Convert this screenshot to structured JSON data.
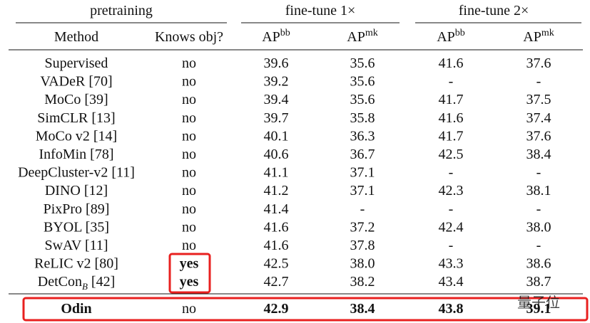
{
  "header": {
    "groups": [
      "pretraining",
      "fine-tune 1×",
      "fine-tune 2×"
    ],
    "columns": [
      "Method",
      "Knows obj?",
      {
        "base": "AP",
        "sup": "bb"
      },
      {
        "base": "AP",
        "sup": "mk"
      },
      {
        "base": "AP",
        "sup": "bb"
      },
      {
        "base": "AP",
        "sup": "mk"
      }
    ]
  },
  "table": {
    "rows": [
      [
        "Supervised",
        "no",
        "39.6",
        "35.6",
        "41.6",
        "37.6"
      ],
      [
        "VADeR [70]",
        "no",
        "39.2",
        "35.6",
        "-",
        "-"
      ],
      [
        "MoCo [39]",
        "no",
        "39.4",
        "35.6",
        "41.7",
        "37.5"
      ],
      [
        "SimCLR [13]",
        "no",
        "39.7",
        "35.8",
        "41.6",
        "37.4"
      ],
      [
        "MoCo v2 [14]",
        "no",
        "40.1",
        "36.3",
        "41.7",
        "37.6"
      ],
      [
        "InfoMin [78]",
        "no",
        "40.6",
        "36.7",
        "42.5",
        "38.4"
      ],
      [
        "DeepCluster-v2 [11]",
        "no",
        "41.1",
        "37.1",
        "-",
        "-"
      ],
      [
        "DINO [12]",
        "no",
        "41.2",
        "37.1",
        "42.3",
        "38.1"
      ],
      [
        "PixPro [89]",
        "no",
        "41.4",
        "-",
        "-",
        "-"
      ],
      [
        "BYOL [35]",
        "no",
        "41.6",
        "37.2",
        "42.4",
        "38.0"
      ],
      [
        "SwAV [11]",
        "no",
        "41.6",
        "37.8",
        "-",
        "-"
      ],
      [
        "ReLIC v2 [80]",
        "yes",
        "42.5",
        "38.0",
        "43.3",
        "38.6"
      ],
      [
        {
          "main": "DetCon",
          "sub": "B",
          "suffix": " [42]"
        },
        "yes",
        "42.7",
        "38.2",
        "43.4",
        "38.7"
      ]
    ],
    "final_row": [
      "Odin",
      "no",
      "42.9",
      "38.4",
      "43.8",
      "39.1"
    ]
  },
  "watermark": "量子位"
}
